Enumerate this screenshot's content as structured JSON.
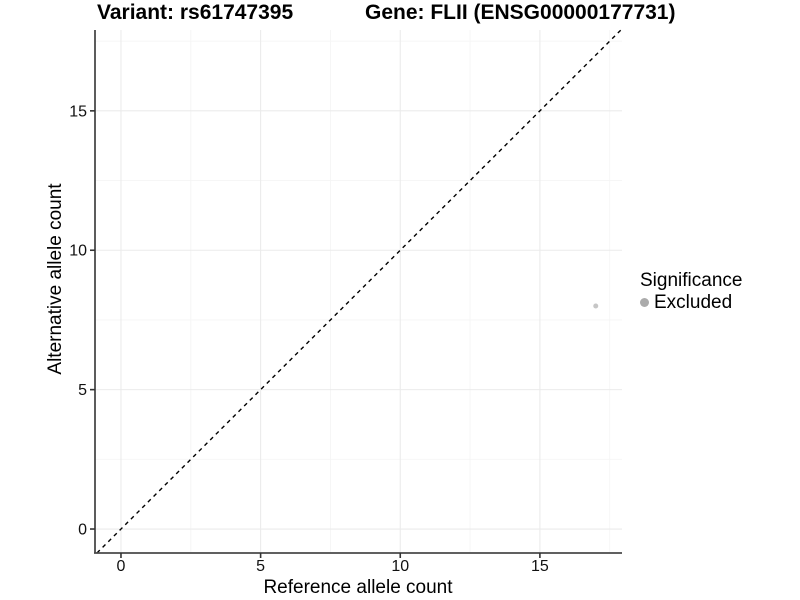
{
  "chart_data": {
    "type": "scatter",
    "title_left": "Variant: rs61747395",
    "title_right": "Gene: FLII (ENSG00000177731)",
    "xlabel": "Reference allele count",
    "ylabel": "Alternative allele count",
    "xlim": [
      -0.93,
      17.94
    ],
    "ylim": [
      -0.86,
      17.9
    ],
    "x_major_ticks": [
      0,
      5,
      10,
      15
    ],
    "y_major_ticks": [
      0,
      5,
      10,
      15
    ],
    "x_minor_ticks": [
      2.5,
      7.5,
      12.5,
      17.5
    ],
    "y_minor_ticks": [
      2.5,
      7.5,
      12.5,
      17.5
    ],
    "grid": "on",
    "series": [
      {
        "name": "Excluded",
        "points": [
          {
            "x": 17,
            "y": 8
          }
        ],
        "color": "#c6c6c6"
      }
    ],
    "identity_line": {
      "slope": 1,
      "intercept": 0,
      "style": "dashed",
      "color": "#000000"
    },
    "legend": {
      "position": "right",
      "title": "Significance",
      "items": [
        {
          "label": "Excluded",
          "key": "dot-icon",
          "color": "#ababab"
        }
      ]
    },
    "colors": {
      "background": "#ffffff",
      "grid_major": "#ebebeb",
      "grid_minor": "#f5f5f5",
      "axis_line": "#4a4a4a",
      "tick_mark": "#333333",
      "tick_label": "#111111"
    }
  }
}
